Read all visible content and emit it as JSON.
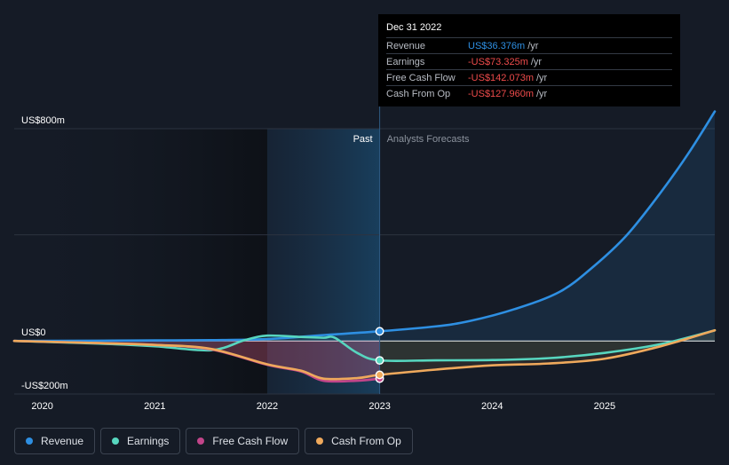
{
  "chart_data": {
    "type": "line",
    "y_axis": {
      "unit": "US$m",
      "ylim": [
        -200,
        800
      ],
      "tick_labels": [
        {
          "value": 800,
          "label": "US$800m"
        },
        {
          "value": 0,
          "label": "US$0"
        },
        {
          "value": -200,
          "label": "-US$200m"
        }
      ]
    },
    "x_axis": {
      "xlim": [
        2019.75,
        2025.98
      ],
      "tick_labels": [
        "2020",
        "2021",
        "2022",
        "2023",
        "2024",
        "2025"
      ],
      "tick_values": [
        2020,
        2021,
        2022,
        2023,
        2024,
        2025
      ]
    },
    "regions": {
      "past_label": "Past",
      "forecast_label": "Analysts Forecasts",
      "divider_x": 2023.0,
      "highlight_start": 2022.0
    },
    "series": [
      {
        "name": "Revenue",
        "color": "#2e8fe2",
        "points": [
          [
            2019.75,
            0
          ],
          [
            2020.5,
            1
          ],
          [
            2021.0,
            2
          ],
          [
            2021.5,
            3
          ],
          [
            2022.0,
            7
          ],
          [
            2022.5,
            22
          ],
          [
            2023.0,
            36.376
          ],
          [
            2023.5,
            55
          ],
          [
            2023.8,
            75
          ],
          [
            2024.2,
            120
          ],
          [
            2024.6,
            185
          ],
          [
            2024.9,
            280
          ],
          [
            2025.2,
            400
          ],
          [
            2025.5,
            560
          ],
          [
            2025.75,
            710
          ],
          [
            2025.98,
            865
          ]
        ]
      },
      {
        "name": "Earnings",
        "color": "#57d6bf",
        "points": [
          [
            2019.75,
            0
          ],
          [
            2020.5,
            -10
          ],
          [
            2021.0,
            -20
          ],
          [
            2021.5,
            -35
          ],
          [
            2021.8,
            3
          ],
          [
            2022.0,
            20
          ],
          [
            2022.3,
            15
          ],
          [
            2022.5,
            12
          ],
          [
            2022.6,
            12
          ],
          [
            2022.8,
            -45
          ],
          [
            2023.0,
            -73.325
          ],
          [
            2023.5,
            -73
          ],
          [
            2024.0,
            -72
          ],
          [
            2024.5,
            -65
          ],
          [
            2025.0,
            -45
          ],
          [
            2025.5,
            -12
          ],
          [
            2025.98,
            40
          ]
        ]
      },
      {
        "name": "Free Cash Flow",
        "color": "#c2458a",
        "points": [
          [
            2019.75,
            0
          ],
          [
            2020.5,
            -8
          ],
          [
            2021.0,
            -15
          ],
          [
            2021.5,
            -32
          ],
          [
            2022.0,
            -90
          ],
          [
            2022.3,
            -115
          ],
          [
            2022.5,
            -150
          ],
          [
            2022.8,
            -150
          ],
          [
            2023.0,
            -142.073
          ]
        ]
      },
      {
        "name": "Cash From Op",
        "color": "#efa95c",
        "points": [
          [
            2019.75,
            0
          ],
          [
            2020.5,
            -8
          ],
          [
            2021.0,
            -15
          ],
          [
            2021.5,
            -30
          ],
          [
            2022.0,
            -88
          ],
          [
            2022.3,
            -112
          ],
          [
            2022.5,
            -142
          ],
          [
            2022.8,
            -140
          ],
          [
            2023.0,
            -127.96
          ],
          [
            2023.5,
            -108
          ],
          [
            2024.0,
            -92
          ],
          [
            2024.5,
            -85
          ],
          [
            2025.0,
            -67
          ],
          [
            2025.5,
            -20
          ],
          [
            2025.98,
            40
          ]
        ]
      }
    ],
    "markers_at": 2023.0,
    "tooltip": {
      "date": "Dec 31 2022",
      "unit": "/yr",
      "rows": [
        {
          "label": "Revenue",
          "value": "US$36.376m",
          "color": "#2e8fe2"
        },
        {
          "label": "Earnings",
          "value": "-US$73.325m",
          "color": "#ee4b4b"
        },
        {
          "label": "Free Cash Flow",
          "value": "-US$142.073m",
          "color": "#ee4b4b"
        },
        {
          "label": "Cash From Op",
          "value": "-US$127.960m",
          "color": "#ee4b4b"
        }
      ]
    },
    "legend": [
      {
        "label": "Revenue",
        "color": "#2e8fe2"
      },
      {
        "label": "Earnings",
        "color": "#57d6bf"
      },
      {
        "label": "Free Cash Flow",
        "color": "#c2458a"
      },
      {
        "label": "Cash From Op",
        "color": "#efa95c"
      }
    ]
  }
}
